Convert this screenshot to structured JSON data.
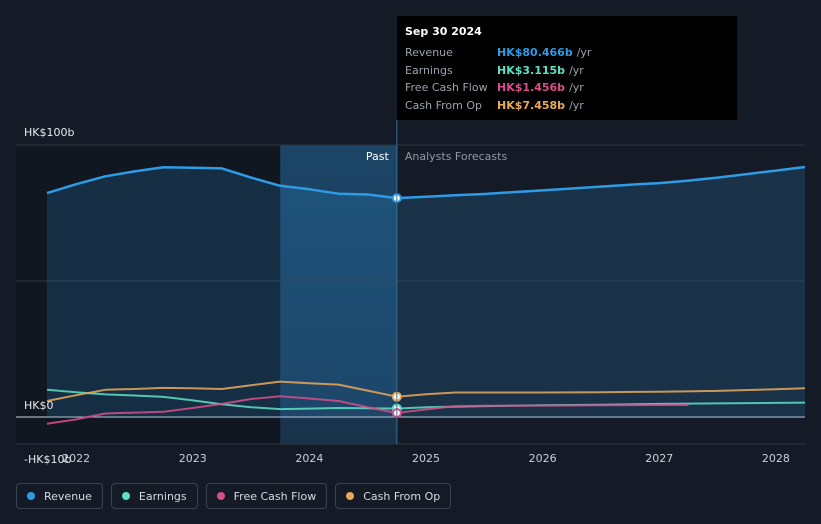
{
  "tooltip": {
    "date": "Sep 30 2024",
    "rows": [
      {
        "label": "Revenue",
        "value": "HK$80.466b",
        "unit": "/yr",
        "color": "#2e9be6"
      },
      {
        "label": "Earnings",
        "value": "HK$3.115b",
        "unit": "/yr",
        "color": "#5ee0c6"
      },
      {
        "label": "Free Cash Flow",
        "value": "HK$1.456b",
        "unit": "/yr",
        "color": "#d64f8a"
      },
      {
        "label": "Cash From Op",
        "value": "HK$7.458b",
        "unit": "/yr",
        "color": "#e9a95a"
      }
    ]
  },
  "legend": [
    {
      "label": "Revenue",
      "color": "#2e9be6"
    },
    {
      "label": "Earnings",
      "color": "#5ee0c6"
    },
    {
      "label": "Free Cash Flow",
      "color": "#d64f8a"
    },
    {
      "label": "Cash From Op",
      "color": "#e9a95a"
    }
  ],
  "chart_data": {
    "type": "line",
    "y_tick_labels": [
      "HK$100b",
      "HK$0",
      "-HK$10b"
    ],
    "ylim": [
      -10,
      100
    ],
    "xlim": [
      2021.75,
      2028.25
    ],
    "x_tick_labels": [
      "2022",
      "2023",
      "2024",
      "2025",
      "2026",
      "2027",
      "2028"
    ],
    "x_ticks": [
      2022,
      2023,
      2024,
      2025,
      2026,
      2027,
      2028
    ],
    "past_label": "Past",
    "forecast_label": "Analysts Forecasts",
    "divider_x": 2024.75,
    "highlight_start_x": 2023.75,
    "grid": true,
    "series": [
      {
        "name": "Revenue",
        "color": "#2e9be6",
        "area": true,
        "x": [
          2021.75,
          2022.0,
          2022.25,
          2022.5,
          2022.75,
          2023.0,
          2023.25,
          2023.5,
          2023.75,
          2024.0,
          2024.25,
          2024.5,
          2024.75,
          2025.0,
          2025.25,
          2025.5,
          2025.75,
          2026.0,
          2026.25,
          2026.5,
          2026.75,
          2027.0,
          2027.25,
          2027.5,
          2027.75,
          2028.0,
          2028.25
        ],
        "y": [
          82.3,
          85.6,
          88.5,
          90.3,
          91.8,
          91.6,
          91.4,
          88.0,
          85.0,
          83.7,
          82.1,
          81.8,
          80.47,
          81.0,
          81.5,
          82.0,
          82.7,
          83.3,
          84.0,
          84.7,
          85.4,
          86.0,
          86.9,
          88.0,
          89.3,
          90.6,
          91.9
        ]
      },
      {
        "name": "Earnings",
        "color": "#5ee0c6",
        "x": [
          2021.75,
          2022.0,
          2022.25,
          2022.5,
          2022.75,
          2023.0,
          2023.25,
          2023.5,
          2023.75,
          2024.0,
          2024.25,
          2024.5,
          2024.75,
          2025.0,
          2025.5,
          2026.0,
          2026.5,
          2027.0,
          2027.5,
          2028.0,
          2028.25
        ],
        "y": [
          10.0,
          9.1,
          8.3,
          7.9,
          7.4,
          6.1,
          4.7,
          3.6,
          2.9,
          3.1,
          3.3,
          3.2,
          3.1,
          3.6,
          4.0,
          4.3,
          4.5,
          4.8,
          5.0,
          5.2,
          5.3
        ]
      },
      {
        "name": "Free Cash Flow",
        "color": "#d64f8a",
        "x": [
          2021.75,
          2022.0,
          2022.25,
          2022.5,
          2022.75,
          2023.0,
          2023.25,
          2023.5,
          2023.75,
          2024.0,
          2024.25,
          2024.5,
          2024.75,
          2025.0,
          2025.25,
          2025.5,
          2026.0,
          2026.5,
          2027.0,
          2027.25
        ],
        "y": [
          -2.5,
          -0.9,
          1.3,
          1.6,
          1.9,
          3.3,
          4.8,
          6.6,
          7.6,
          6.8,
          5.9,
          3.6,
          1.46,
          2.8,
          4.0,
          4.1,
          4.2,
          4.3,
          4.4,
          4.4
        ]
      },
      {
        "name": "Cash From Op",
        "color": "#e9a95a",
        "x": [
          2021.75,
          2022.0,
          2022.25,
          2022.5,
          2022.75,
          2023.0,
          2023.25,
          2023.5,
          2023.75,
          2024.0,
          2024.25,
          2024.5,
          2024.75,
          2025.0,
          2025.25,
          2025.5,
          2026.0,
          2026.5,
          2027.0,
          2027.5,
          2028.0,
          2028.25
        ],
        "y": [
          5.9,
          8.0,
          10.0,
          10.3,
          10.7,
          10.6,
          10.3,
          11.7,
          13.0,
          12.4,
          11.9,
          9.7,
          7.46,
          8.4,
          9.0,
          9.0,
          9.0,
          9.1,
          9.3,
          9.6,
          10.2,
          10.6
        ]
      }
    ]
  }
}
